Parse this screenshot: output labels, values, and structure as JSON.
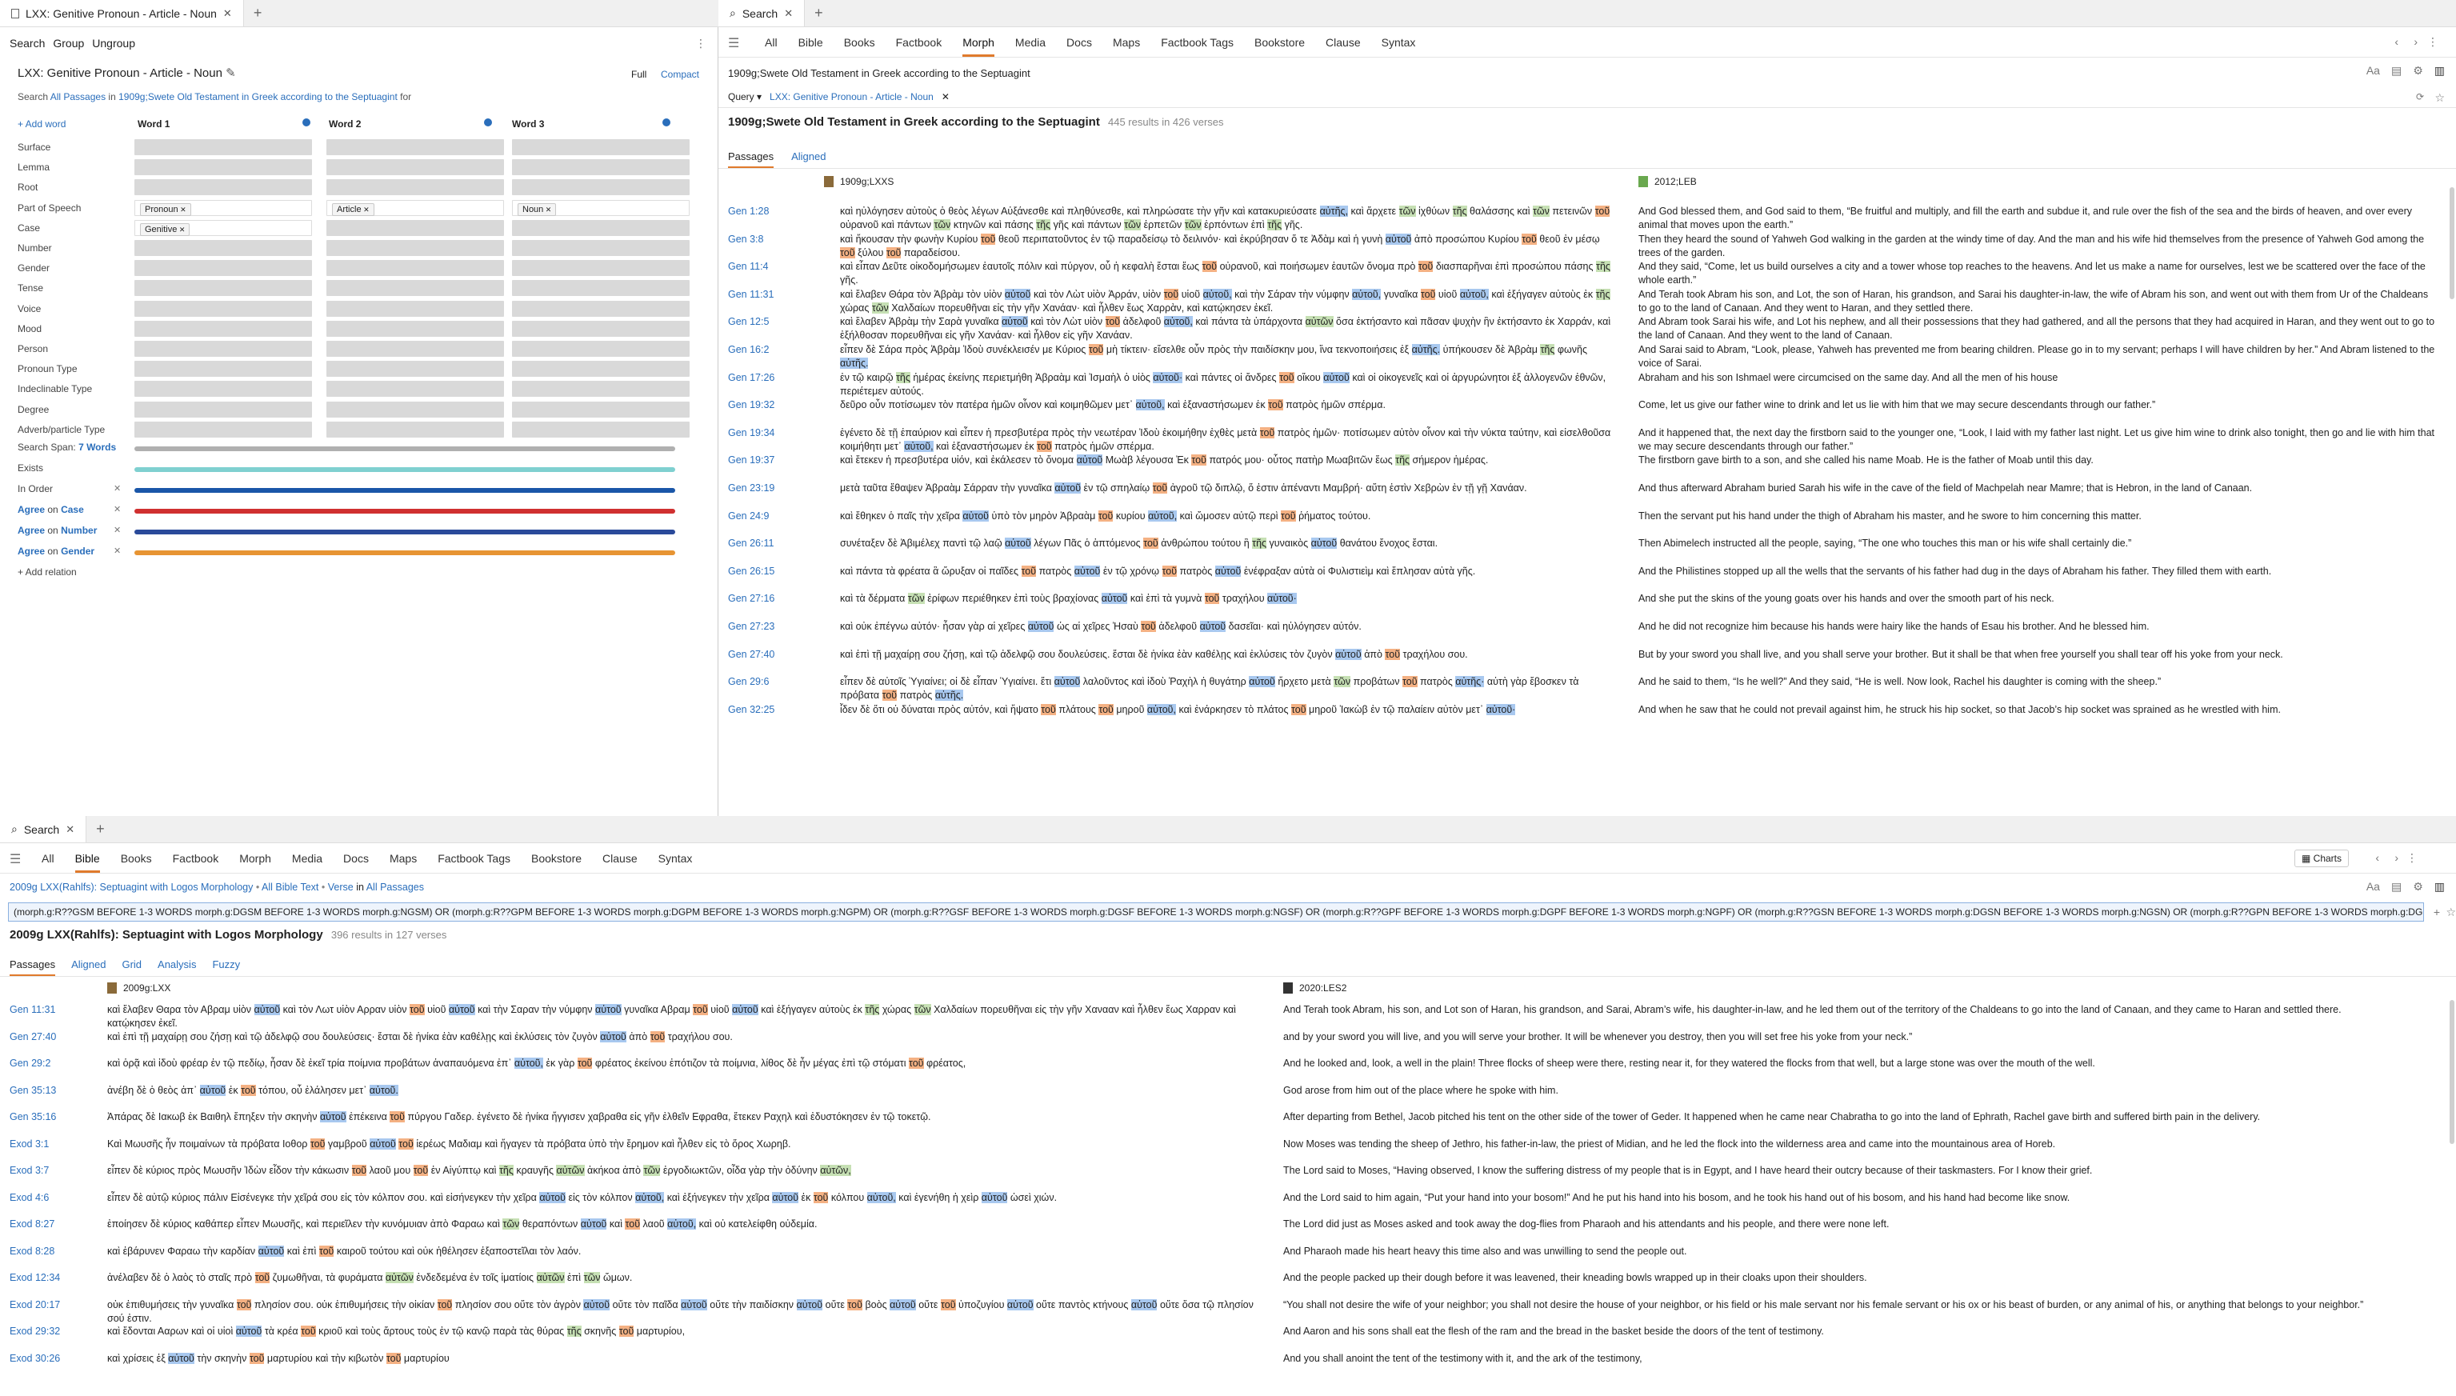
{
  "top_tabs": {
    "left": {
      "title": "LXX: Genitive Pronoun - Article - Noun"
    },
    "right": {
      "title": "Search"
    }
  },
  "left_pane": {
    "menu": [
      "Search",
      "Group",
      "Ungroup"
    ],
    "query_title": "LXX: Genitive Pronoun - Article - Noun",
    "view_full": "Full",
    "view_compact": "Compact",
    "search_line": {
      "prefix": "Search",
      "scope": "All Passages",
      "in": "in",
      "resource": "1909g;Swete Old Testament in Greek according to the Septuagint",
      "suffix": "for"
    },
    "add_word": "+ Add word",
    "words": [
      "Word 1",
      "Word 2",
      "Word 3"
    ],
    "fields": [
      "Surface",
      "Lemma",
      "Root",
      "Part of Speech",
      "Case",
      "Number",
      "Gender",
      "Tense",
      "Voice",
      "Mood",
      "Person",
      "Pronoun Type",
      "Indeclinable Type",
      "Degree",
      "Adverb/particle Type"
    ],
    "chips": {
      "pos_w1": "Pronoun",
      "pos_w2": "Article",
      "pos_w3": "Noun",
      "case_w1": "Genitive"
    },
    "search_span_label": "Search Span:",
    "search_span_value": "7 Words",
    "exists": "Exists",
    "in_order": "In Order",
    "agree_word": "Agree",
    "on": "on",
    "agree_case": "Case",
    "agree_number": "Number",
    "agree_gender": "Gender",
    "add_relation": "+ Add relation",
    "colors": {
      "teal": "#7fd0d0",
      "blue": "#1a56a8",
      "red": "#d03030",
      "navy": "#2a4a9a",
      "orange": "#e79433"
    }
  },
  "right_pane": {
    "nav": [
      "All",
      "Bible",
      "Books",
      "Factbook",
      "Morph",
      "Media",
      "Docs",
      "Maps",
      "Factbook Tags",
      "Bookstore",
      "Clause",
      "Syntax"
    ],
    "active_nav": "Morph",
    "resource_line": "1909g;Swete Old Testament in Greek according to the Septuagint",
    "query_label": "Query",
    "query_chip": "LXX: Genitive Pronoun - Article - Noun",
    "results_title": "1909g;Swete Old Testament in Greek according to the Septuagint",
    "results_count": "445 results in 426 verses",
    "subtabs": [
      "Passages",
      "Aligned"
    ],
    "col1": "1909g;LXXS",
    "col2": "2012;LEB",
    "rows": [
      {
        "ref": "Gen 1:28",
        "gk": "καὶ ηὐλόγησεν αὐτοὺς ὁ θεὸς λέγων Αὐξάνεσθε καὶ πληθύνεσθε, καὶ πληρώσατε τὴν γῆν καὶ κατακυριεύσατε αὐτῆς, καὶ ἄρχετε τῶν ἰχθύων τῆς θαλάσσης καὶ τῶν πετεινῶν τοῦ οὐρανοῦ καὶ πάντων τῶν κτηνῶν καὶ πάσης τῆς γῆς καὶ πάντων τῶν ἑρπετῶν τῶν ἑρπόντων ἐπὶ τῆς γῆς.",
        "en": "And God blessed them, and God said to them, “Be fruitful and multiply, and fill the earth and subdue it, and rule over the fish of the sea and the birds of heaven, and over every animal that moves upon the earth.”"
      },
      {
        "ref": "Gen 3:8",
        "gk": "καὶ ἤκουσαν τὴν φωνὴν Κυρίου τοῦ θεοῦ περιπατοῦντος ἐν τῷ παραδείσῳ τὸ δειλινόν· καὶ ἐκρύβησαν ὅ τε Ἀδὰμ καὶ ἡ γυνὴ αὐτοῦ ἀπὸ προσώπου Κυρίου τοῦ θεοῦ ἐν μέσῳ τοῦ ξύλου τοῦ παραδείσου.",
        "en": "Then they heard the sound of Yahweh God walking in the garden at the windy time of day. And the man and his wife hid themselves from the presence of Yahweh God among the trees of the garden."
      },
      {
        "ref": "Gen 11:4",
        "gk": "καὶ εἶπαν Δεῦτε οἰκοδομήσωμεν ἑαυτοῖς πόλιν καὶ πύργον, οὗ ἡ κεφαλὴ ἔσται ἕως τοῦ οὐρανοῦ, καὶ ποιήσωμεν ἑαυτῶν ὄνομα πρὸ τοῦ διασπαρῆναι ἐπὶ προσώπου πάσης τῆς γῆς.",
        "en": "And they said, “Come, let us build ourselves a city and a tower whose top reaches to the heavens. And let us make a name for ourselves, lest we be scattered over the face of the whole earth.”"
      },
      {
        "ref": "Gen 11:31",
        "gk": "καὶ ἔλαβεν Θάρα τὸν Ἀβρὰμ τὸν υἱὸν αὐτοῦ καὶ τὸν Λὼτ υἱὸν Ἀρράν, υἱὸν τοῦ υἱοῦ αὐτοῦ, καὶ τὴν Σάραν τὴν νύμφην αὐτοῦ, γυναῖκα τοῦ υἱοῦ αὐτοῦ, καὶ ἐξήγαγεν αὐτοὺς ἐκ τῆς χώρας τῶν Χαλδαίων πορευθῆναι εἰς τὴν γῆν Χανάαν· καὶ ἦλθεν ἕως Χαρρὰν, καὶ κατῴκησεν ἐκεῖ.",
        "en": "And Terah took Abram his son, and Lot, the son of Haran, his grandson, and Sarai his daughter-in-law, the wife of Abram his son, and went out with them from Ur of the Chaldeans to go to the land of Canaan. And they went to Haran, and they settled there."
      },
      {
        "ref": "Gen 12:5",
        "gk": "καὶ ἔλαβεν Ἀβρὰμ τὴν Σαρὰ γυναῖκα αὐτοῦ καὶ τὸν Λὼτ υἱὸν τοῦ ἀδελφοῦ αὐτοῦ, καὶ πάντα τὰ ὑπάρχοντα αὐτῶν ὅσα ἐκτήσαντο καὶ πᾶσαν ψυχὴν ἣν ἐκτήσαντο ἐκ Χαρράν, καὶ ἐξήλθοσαν πορευθῆναι εἰς γῆν Χανάαν· καὶ ἦλθον εἰς γῆν Χανάαν.",
        "en": "And Abram took Sarai his wife, and Lot his nephew, and all their possessions that they had gathered, and all the persons that they had acquired in Haran, and they went out to go to the land of Canaan. And they went to the land of Canaan."
      },
      {
        "ref": "Gen 16:2",
        "gk": "εἶπεν δὲ Σάρα πρὸς Ἀβρὰμ Ἰδοὺ συνέκλεισέν με Κύριος τοῦ μὴ τίκτειν· εἴσελθε οὖν πρὸς τὴν παιδίσκην μου, ἵνα τεκνοποιήσεις ἐξ αὐτῆς. ὑπήκουσεν δὲ Ἀβρὰμ τῆς φωνῆς αὐτῆς.",
        "en": "And Sarai said to Abram, “Look, please, Yahweh has prevented me from bearing children. Please go in to my servant; perhaps I will have children by her.” And Abram listened to the voice of Sarai."
      },
      {
        "ref": "Gen 17:26",
        "gk": "ἐν τῷ καιρῷ τῆς ἡμέρας ἐκείνης περιετμήθη Ἀβραὰμ καὶ Ἰσμαὴλ ὁ υἱὸς αὐτοῦ· καὶ πάντες οἱ ἄνδρες τοῦ οἴκου αὐτοῦ καὶ οἱ οἰκογενεῖς καὶ οἱ ἀργυρώνητοι ἐξ ἀλλογενῶν ἐθνῶν, περιέτεμεν αὐτούς.",
        "en": "Abraham and his son Ishmael were circumcised on the same day. And all the men of his house"
      },
      {
        "ref": "Gen 19:32",
        "gk": "δεῦρο οὖν ποτίσωμεν τὸν πατέρα ἡμῶν οἶνον καὶ κοιμηθῶμεν μετ᾽ αὐτοῦ, καὶ ἐξαναστήσωμεν ἐκ τοῦ πατρὸς ἡμῶν σπέρμα.",
        "en": "Come, let us give our father wine to drink and let us lie with him that we may secure descendants through our father.”"
      },
      {
        "ref": "Gen 19:34",
        "gk": "ἐγένετο δὲ τῇ ἐπαύριον καὶ εἶπεν ἡ πρεσβυτέρα πρὸς τὴν νεωτέραν Ἰδοὺ ἐκοιμήθην ἐχθὲς μετὰ τοῦ πατρὸς ἡμῶν· ποτίσωμεν αὐτὸν οἶνον καὶ τὴν νύκτα ταύτην, καὶ εἰσελθοῦσα κοιμήθητι μετ᾽ αὐτοῦ, καὶ ἐξαναστήσωμεν ἐκ τοῦ πατρὸς ἡμῶν σπέρμα.",
        "en": "And it happened that, the next day the firstborn said to the younger one, “Look, I laid with my father last night. Let us give him wine to drink also tonight, then go and lie with him that we may secure descendants through our father.”"
      },
      {
        "ref": "Gen 19:37",
        "gk": "καὶ ἔτεκεν ἡ πρεσβυτέρα υἱόν, καὶ ἐκάλεσεν τὸ ὄνομα αὐτοῦ Μωὰβ λέγουσα Ἐκ τοῦ πατρός μου· οὗτος πατὴρ Μωαβιτῶν ἕως τῆς σήμερον ἡμέρας.",
        "en": "The firstborn gave birth to a son, and she called his name Moab. He is the father of Moab until this day."
      },
      {
        "ref": "Gen 23:19",
        "gk": "μετὰ ταῦτα ἔθαψεν Ἀβραὰμ Σάρραν τὴν γυναῖκα αὐτοῦ ἐν τῷ σπηλαίῳ τοῦ ἀγροῦ τῷ διπλῷ, ὅ ἐστιν ἀπέναντι Μαμβρή· αὕτη ἐστὶν Χεβρὼν ἐν τῇ γῇ Χανάαν.",
        "en": "And thus afterward Abraham buried Sarah his wife in the cave of the field of Machpelah near Mamre; that is Hebron, in the land of Canaan."
      },
      {
        "ref": "Gen 24:9",
        "gk": "καὶ ἔθηκεν ὁ παῖς τὴν χεῖρα αὐτοῦ ὑπὸ τὸν μηρὸν Ἀβραὰμ τοῦ κυρίου αὐτοῦ, καὶ ὤμοσεν αὐτῷ περὶ τοῦ ῥήματος τούτου.",
        "en": "Then the servant put his hand under the thigh of Abraham his master, and he swore to him concerning this matter."
      },
      {
        "ref": "Gen 26:11",
        "gk": "συνέταξεν δὲ Ἀβιμέλεχ παντὶ τῷ λαῷ αὐτοῦ λέγων Πᾶς ὁ ἁπτόμενος τοῦ ἀνθρώπου τούτου ἢ τῆς γυναικὸς αὐτοῦ θανάτου ἔνοχος ἔσται.",
        "en": "Then Abimelech instructed all the people, saying, “The one who touches this man or his wife shall certainly die.”"
      },
      {
        "ref": "Gen 26:15",
        "gk": "καὶ πάντα τὰ φρέατα ἃ ὤρυξαν οἱ παῖδες τοῦ πατρὸς αὐτοῦ ἐν τῷ χρόνῳ τοῦ πατρὸς αὐτοῦ ἐνέφραξαν αὐτὰ οἱ Φυλιστιεὶμ καὶ ἔπλησαν αὐτὰ γῆς.",
        "en": "And the Philistines stopped up all the wells that the servants of his father had dug in the days of Abraham his father. They filled them with earth."
      },
      {
        "ref": "Gen 27:16",
        "gk": "καὶ τὰ δέρματα τῶν ἐρίφων περιέθηκεν ἐπὶ τοὺς βραχίονας αὐτοῦ καὶ ἐπὶ τὰ γυμνὰ τοῦ τραχήλου αὐτοῦ·",
        "en": "And she put the skins of the young goats over his hands and over the smooth part of his neck."
      },
      {
        "ref": "Gen 27:23",
        "gk": "καὶ οὐκ ἐπέγνω αὐτόν· ἦσαν γὰρ αἱ χεῖρες αὐτοῦ ὡς αἱ χεῖρες Ἠσαὺ τοῦ ἀδελφοῦ αὐτοῦ δασεῖαι· καὶ ηὐλόγησεν αὐτόν.",
        "en": "And he did not recognize him because his hands were hairy like the hands of Esau his brother. And he blessed him."
      },
      {
        "ref": "Gen 27:40",
        "gk": "καὶ ἐπὶ τῇ μαχαίρῃ σου ζήσῃ, καὶ τῷ ἀδελφῷ σου δουλεύσεις. ἔσται δὲ ἡνίκα ἐὰν καθέλῃς καὶ ἐκλύσεις τὸν ζυγὸν αὐτοῦ ἀπὸ τοῦ τραχήλου σου.",
        "en": "But by your sword you shall live, and you shall serve your brother. But it shall be that when free yourself you shall tear off his yoke from your neck."
      },
      {
        "ref": "Gen 29:6",
        "gk": "εἶπεν δὲ αὐτοῖς Ὑγιαίνει; οἱ δὲ εἶπαν Ὑγιαίνει. ἔτι αὐτοῦ λαλοῦντος καὶ ἰδοὺ Ῥαχὴλ ἡ θυγάτηρ αὐτοῦ ἤρχετο μετὰ τῶν προβάτων τοῦ πατρὸς αὐτῆς· αὐτὴ γὰρ ἔβοσκεν τὰ πρόβατα τοῦ πατρὸς αὐτῆς.",
        "en": "And he said to them, “Is he well?” And they said, “He is well. Now look, Rachel his daughter is coming with the sheep.”"
      },
      {
        "ref": "Gen 32:25",
        "gk": "ἶδεν δὲ ὅτι οὐ δύναται πρὸς αὐτόν, καὶ ἥψατο τοῦ πλάτους τοῦ μηροῦ αὐτοῦ, καὶ ἐνάρκησεν τὸ πλάτος τοῦ μηροῦ Ἰακὼβ ἐν τῷ παλαίειν αὐτὸν μετ᾽ αὐτοῦ·",
        "en": "And when he saw that he could not prevail against him, he struck his hip socket, so that Jacob’s hip socket was sprained as he wrestled with him."
      }
    ]
  },
  "bottom_tabs": {
    "title": "Search"
  },
  "bottom_pane": {
    "nav": [
      "All",
      "Bible",
      "Books",
      "Factbook",
      "Morph",
      "Media",
      "Docs",
      "Maps",
      "Factbook Tags",
      "Bookstore",
      "Clause",
      "Syntax"
    ],
    "active_nav": "Bible",
    "charts": "Charts",
    "resource_line": {
      "res": "2009g LXX(Rahlfs): Septuagint with Logos Morphology",
      "sep": "•",
      "scope": "All Bible Text",
      "unit": "Verse",
      "in": "in",
      "range": "All Passages"
    },
    "query": "(morph.g:R??GSM BEFORE 1-3 WORDS morph.g:DGSM BEFORE 1-3 WORDS morph.g:NGSM) OR (morph.g:R??GPM BEFORE 1-3 WORDS morph.g:DGPM BEFORE 1-3 WORDS morph.g:NGPM) OR (morph.g:R??GSF BEFORE 1-3 WORDS morph.g:DGSF BEFORE 1-3 WORDS morph.g:NGSF) OR (morph.g:R??GPF BEFORE 1-3 WORDS morph.g:DGPF BEFORE 1-3 WORDS morph.g:NGPF) OR (morph.g:R??GSN BEFORE 1-3 WORDS morph.g:DGSN BEFORE 1-3 WORDS morph.g:NGSN) OR (morph.g:R??GPN BEFORE 1-3 WORDS morph.g:DGPN BEFORE 1-3 WORDS morph.",
    "results_title": "2009g LXX(Rahlfs): Septuagint with Logos Morphology",
    "results_count": "396 results in 127 verses",
    "subtabs": [
      "Passages",
      "Aligned",
      "Grid",
      "Analysis",
      "Fuzzy"
    ],
    "col1": "2009g:LXX",
    "col2": "2020:LES2",
    "rows": [
      {
        "ref": "Gen 11:31",
        "gk": "καὶ ἔλαβεν Θαρα τὸν Αβραμ υἱὸν αὐτοῦ καὶ τὸν Λωτ υἱὸν Αρραν υἱὸν τοῦ υἱοῦ αὐτοῦ καὶ τὴν Σαραν τὴν νύμφην αὐτοῦ γυναῖκα Αβραμ τοῦ υἱοῦ αὐτοῦ καὶ ἐξήγαγεν αὐτοὺς ἐκ τῆς χώρας τῶν Χαλδαίων πορευθῆναι εἰς τὴν γῆν Χανααν καὶ ἦλθεν ἕως Χαρραν καὶ κατῴκησεν ἐκεῖ.",
        "en": "And Terah took Abram, his son, and Lot son of Haran, his grandson, and Sarai, Abram’s wife, his daughter-in-law, and he led them out of the territory of the Chaldeans to go into the land of Canaan, and they came to Haran and settled there."
      },
      {
        "ref": "Gen 27:40",
        "gk": "καὶ ἐπὶ τῇ μαχαίρῃ σου ζήσῃ καὶ τῷ ἀδελφῷ σου δουλεύσεις· ἔσται δὲ ἡνίκα ἐὰν καθέλῃς καὶ ἐκλύσεις τὸν ζυγὸν αὐτοῦ ἀπὸ τοῦ τραχήλου σου.",
        "en": "and by your sword you will live, and you will serve your brother. It will be whenever you destroy, then you will set free his yoke from your neck.”"
      },
      {
        "ref": "Gen 29:2",
        "gk": "καὶ ὁρᾷ καὶ ἰδοὺ φρέαρ ἐν τῷ πεδίῳ, ἦσαν δὲ ἐκεῖ τρία ποίμνια προβάτων ἀναπαυόμενα ἐπ᾽ αὐτοῦ, ἐκ γὰρ τοῦ φρέατος ἐκείνου ἐπότιζον τὰ ποίμνια, λίθος δὲ ἦν μέγας ἐπὶ τῷ στόματι τοῦ φρέατος,",
        "en": "And he looked and, look, a well in the plain! Three flocks of sheep were there, resting near it, for they watered the flocks from that well, but a large stone was over the mouth of the well."
      },
      {
        "ref": "Gen 35:13",
        "gk": "ἀνέβη δὲ ὁ θεὸς ἀπ᾽ αὐτοῦ ἐκ τοῦ τόπου, οὗ ἐλάλησεν μετ᾽ αὐτοῦ.",
        "en": "God arose from him out of the place where he spoke with him."
      },
      {
        "ref": "Gen 35:16",
        "gk": "Ἀπάρας δὲ Ιακωβ ἐκ Βαιθηλ ἔπηξεν τὴν σκηνὴν αὐτοῦ ἐπέκεινα τοῦ πύργου Γαδερ. ἐγένετο δὲ ἡνίκα ἤγγισεν χαβραθα εἰς γῆν ἐλθεῖν Εφραθα, ἔτεκεν Ραχηλ καὶ ἐδυστόκησεν ἐν τῷ τοκετῷ.",
        "en": "After departing from Bethel, Jacob pitched his tent on the other side of the tower of Geder. It happened when he came near Chabratha to go into the land of Ephrath, Rachel gave birth and suffered birth pain in the delivery."
      },
      {
        "ref": "Exod 3:1",
        "gk": "Καὶ Μωυσῆς ἦν ποιμαίνων τὰ πρόβατα Ιοθορ τοῦ γαμβροῦ αὐτοῦ τοῦ ἱερέως Μαδιαμ καὶ ἤγαγεν τὰ πρόβατα ὑπὸ τὴν ἔρημον καὶ ἦλθεν εἰς τὸ ὄρος Χωρηβ.",
        "en": "Now Moses was tending the sheep of Jethro, his father-in-law, the priest of Midian, and he led the flock into the wilderness area and came into the mountainous area of Horeb."
      },
      {
        "ref": "Exod 3:7",
        "gk": "εἶπεν δὲ κύριος πρὸς Μωυσῆν Ἰδὼν εἶδον τὴν κάκωσιν τοῦ λαοῦ μου τοῦ ἐν Αἰγύπτῳ καὶ τῆς κραυγῆς αὐτῶν ἀκήκοα ἀπὸ τῶν ἐργοδιωκτῶν, οἶδα γὰρ τὴν ὀδύνην αὐτῶν,",
        "en": "The Lord said to Moses, “Having observed, I know the suffering distress of my people that is in Egypt, and I have heard their outcry because of their taskmasters. For I know their grief."
      },
      {
        "ref": "Exod 4:6",
        "gk": "εἶπεν δὲ αὐτῷ κύριος πάλιν Εἰσένεγκε τὴν χεῖρά σου εἰς τὸν κόλπον σου. καὶ εἰσήνεγκεν τὴν χεῖρα αὐτοῦ εἰς τὸν κόλπον αὐτοῦ, καὶ ἐξήνεγκεν τὴν χεῖρα αὐτοῦ ἐκ τοῦ κόλπου αὐτοῦ, καὶ ἐγενήθη ἡ χεὶρ αὐτοῦ ὡσεὶ χιών.",
        "en": "And the Lord said to him again, “Put your hand into your bosom!” And he put his hand into his bosom, and he took his hand out of his bosom, and his hand had become like snow."
      },
      {
        "ref": "Exod 8:27",
        "gk": "ἐποίησεν δὲ κύριος καθάπερ εἶπεν Μωυσῆς, καὶ περιεῖλεν τὴν κυνόμυιαν ἀπὸ Φαραω καὶ τῶν θεραπόντων αὐτοῦ καὶ τοῦ λαοῦ αὐτοῦ, καὶ οὐ κατελείφθη οὐδεμία.",
        "en": "The Lord did just as Moses asked and took away the dog-flies from Pharaoh and his attendants and his people, and there were none left."
      },
      {
        "ref": "Exod 8:28",
        "gk": "καὶ ἐβάρυνεν Φαραω τὴν καρδίαν αὐτοῦ καὶ ἐπὶ τοῦ καιροῦ τούτου καὶ οὐκ ἠθέλησεν ἐξαποστεῖλαι τὸν λαόν.",
        "en": "And Pharaoh made his heart heavy this time also and was unwilling to send the people out."
      },
      {
        "ref": "Exod 12:34",
        "gk": "ἀνέλαβεν δὲ ὁ λαὸς τὸ σταῖς πρὸ τοῦ ζυμωθῆναι, τὰ φυράματα αὐτῶν ἐνδεδεμένα ἐν τοῖς ἱματίοις αὐτῶν ἐπὶ τῶν ὤμων.",
        "en": "And the people packed up their dough before it was leavened, their kneading bowls wrapped up in their cloaks upon their shoulders."
      },
      {
        "ref": "Exod 20:17",
        "gk": "οὐκ ἐπιθυμήσεις τὴν γυναῖκα τοῦ πλησίον σου. οὐκ ἐπιθυμήσεις τὴν οἰκίαν τοῦ πλησίον σου οὔτε τὸν ἀγρὸν αὐτοῦ οὔτε τὸν παῖδα αὐτοῦ οὔτε τὴν παιδίσκην αὐτοῦ οὔτε τοῦ βοὸς αὐτοῦ οὔτε τοῦ ὑποζυγίου αὐτοῦ οὔτε παντὸς κτήνους αὐτοῦ οὔτε ὅσα τῷ πλησίον σού ἐστιν.",
        "en": "“You shall not desire the wife of your neighbor; you shall not desire the house of your neighbor, or his field or his male servant nor his female servant or his ox or his beast of burden, or any animal of his, or anything that belongs to your neighbor.”"
      },
      {
        "ref": "Exod 29:32",
        "gk": "καὶ ἔδονται Ααρων καὶ οἱ υἱοὶ αὐτοῦ τὰ κρέα τοῦ κριοῦ καὶ τοὺς ἄρτους τοὺς ἐν τῷ κανῷ παρὰ τὰς θύρας τῆς σκηνῆς τοῦ μαρτυρίου,",
        "en": "And Aaron and his sons shall eat the flesh of the ram and the bread in the basket beside the doors of the tent of testimony."
      },
      {
        "ref": "Exod 30:26",
        "gk": "καὶ χρίσεις ἐξ αὐτοῦ τὴν σκηνὴν τοῦ μαρτυρίου καὶ τὴν κιβωτὸν τοῦ μαρτυρίου",
        "en": "And you shall anoint the tent of the testimony with it, and the ark of the testimony,"
      }
    ]
  }
}
